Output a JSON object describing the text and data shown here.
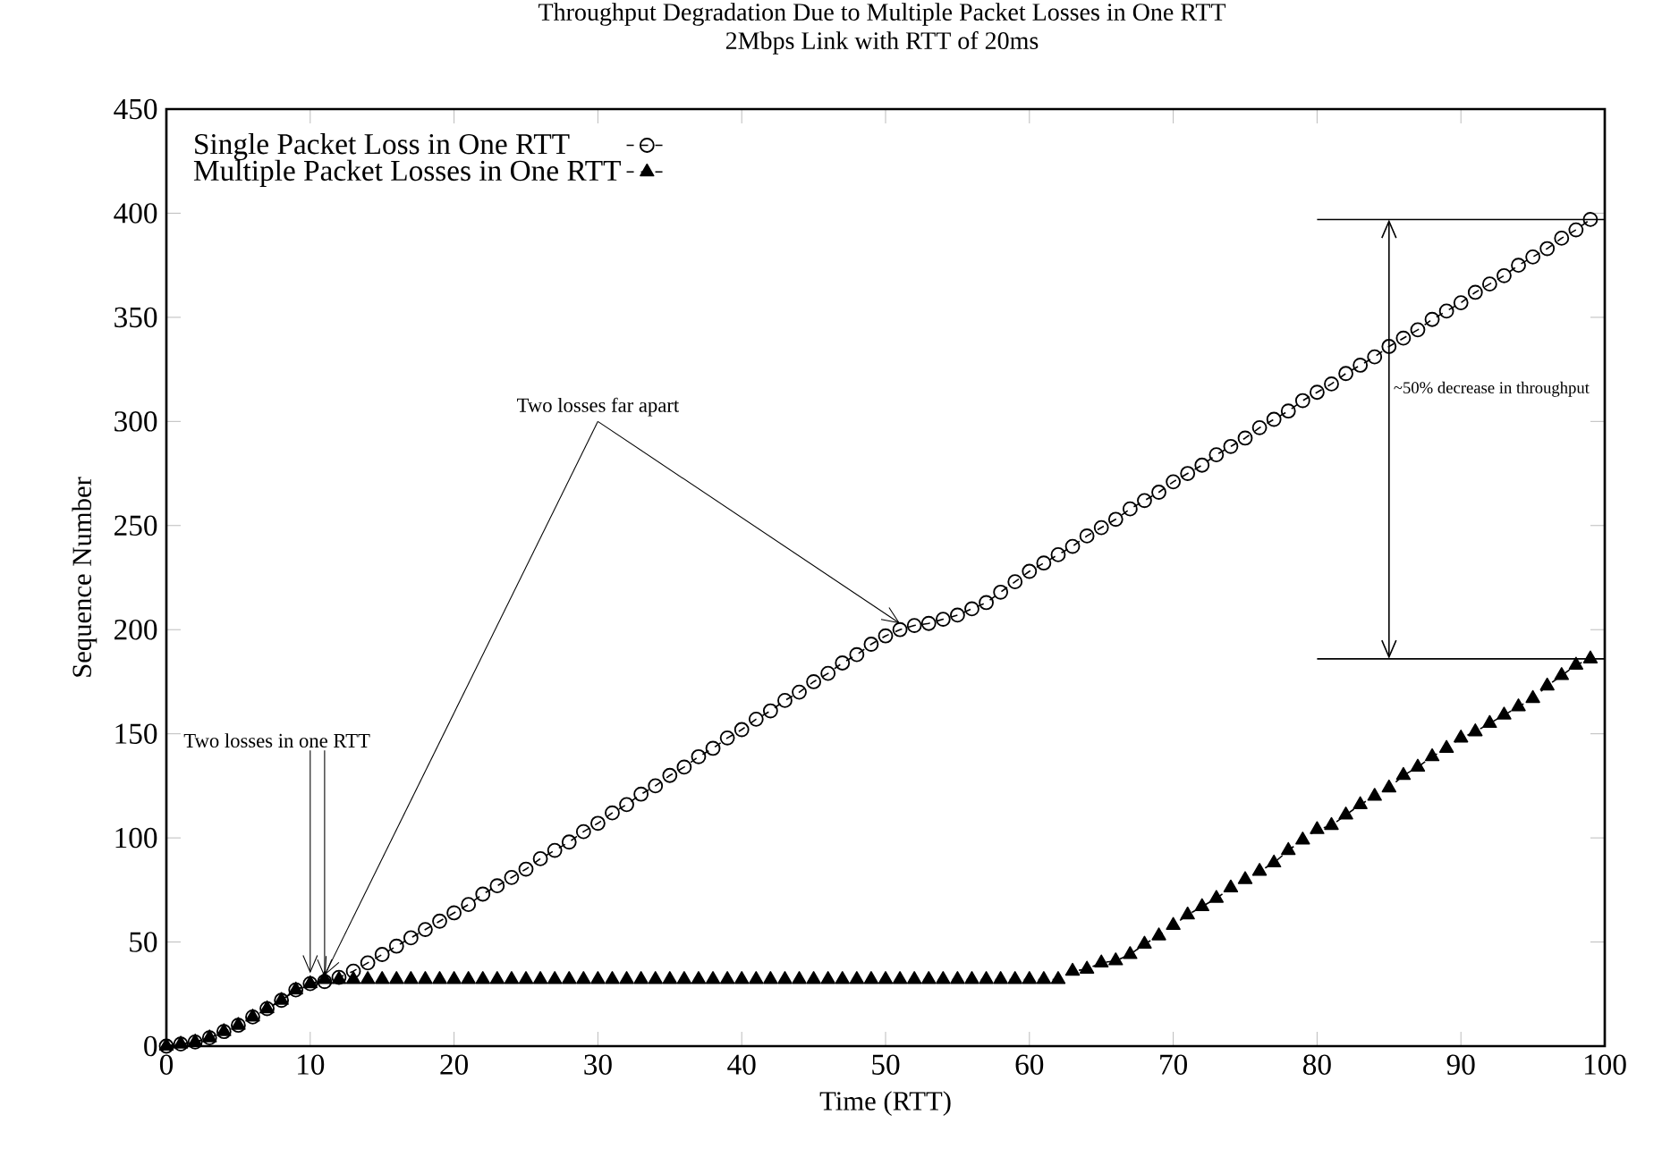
{
  "chart_data": {
    "type": "line",
    "title": "Throughput Degradation Due to Multiple Packet Losses in One RTT",
    "subtitle": "2Mbps Link with RTT of 20ms",
    "xlabel": "Time (RTT)",
    "ylabel": "Sequence Number",
    "xlim": [
      0,
      100
    ],
    "ylim": [
      0,
      450
    ],
    "xticks": [
      0,
      10,
      20,
      30,
      40,
      50,
      60,
      70,
      80,
      90,
      100
    ],
    "yticks": [
      0,
      50,
      100,
      150,
      200,
      250,
      300,
      350,
      400,
      450
    ],
    "legend": "top",
    "grid": false,
    "line_style": "dashed",
    "x": [
      0,
      1,
      2,
      3,
      4,
      5,
      6,
      7,
      8,
      9,
      10,
      11,
      12,
      13,
      14,
      15,
      16,
      17,
      18,
      19,
      20,
      21,
      22,
      23,
      24,
      25,
      26,
      27,
      28,
      29,
      30,
      31,
      32,
      33,
      34,
      35,
      36,
      37,
      38,
      39,
      40,
      41,
      42,
      43,
      44,
      45,
      46,
      47,
      48,
      49,
      50,
      51,
      52,
      53,
      54,
      55,
      56,
      57,
      58,
      59,
      60,
      61,
      62,
      63,
      64,
      65,
      66,
      67,
      68,
      69,
      70,
      71,
      72,
      73,
      74,
      75,
      76,
      77,
      78,
      79,
      80,
      81,
      82,
      83,
      84,
      85,
      86,
      87,
      88,
      89,
      90,
      91,
      92,
      93,
      94,
      95,
      96,
      97,
      98,
      99
    ],
    "series": [
      {
        "name": "Single Packet Loss in One RTT",
        "color": "#000000",
        "marker": "circle",
        "values": [
          0,
          1,
          2,
          4,
          7,
          10,
          14,
          18,
          22,
          27,
          30,
          31,
          33,
          36,
          40,
          44,
          48,
          52,
          56,
          60,
          64,
          68,
          73,
          77,
          81,
          85,
          90,
          94,
          98,
          103,
          107,
          112,
          116,
          121,
          125,
          130,
          134,
          139,
          143,
          148,
          152,
          157,
          161,
          166,
          170,
          175,
          179,
          184,
          188,
          193,
          197,
          200,
          202,
          203,
          205,
          207,
          210,
          213,
          218,
          223,
          228,
          232,
          236,
          240,
          245,
          249,
          253,
          258,
          262,
          266,
          271,
          275,
          279,
          284,
          288,
          292,
          297,
          301,
          305,
          310,
          314,
          318,
          323,
          327,
          331,
          336,
          340,
          344,
          349,
          353,
          357,
          362,
          366,
          370,
          375,
          379,
          383,
          388,
          392,
          397
        ]
      },
      {
        "name": "Multiple Packet Losses in One RTT",
        "color": "#000000",
        "marker": "triangle",
        "values": [
          0,
          1,
          2,
          4,
          7,
          10,
          14,
          18,
          22,
          27,
          30,
          32,
          32,
          32,
          32,
          32,
          32,
          32,
          32,
          32,
          32,
          32,
          32,
          32,
          32,
          32,
          32,
          32,
          32,
          32,
          32,
          32,
          32,
          32,
          32,
          32,
          32,
          32,
          32,
          32,
          32,
          32,
          32,
          32,
          32,
          32,
          32,
          32,
          32,
          32,
          32,
          32,
          32,
          32,
          32,
          32,
          32,
          32,
          32,
          32,
          32,
          32,
          32,
          36,
          37,
          40,
          41,
          44,
          49,
          53,
          58,
          63,
          67,
          71,
          76,
          80,
          84,
          88,
          94,
          99,
          104,
          106,
          111,
          116,
          120,
          124,
          130,
          134,
          139,
          143,
          148,
          151,
          155,
          159,
          163,
          167,
          173,
          178,
          183,
          186
        ]
      }
    ],
    "annotations": [
      {
        "text": "Two losses in one RTT",
        "x": 10,
        "y": 30
      },
      {
        "text": "Two losses far apart",
        "x": 51,
        "y": 200
      },
      "~50% decrease in throughput"
    ]
  }
}
